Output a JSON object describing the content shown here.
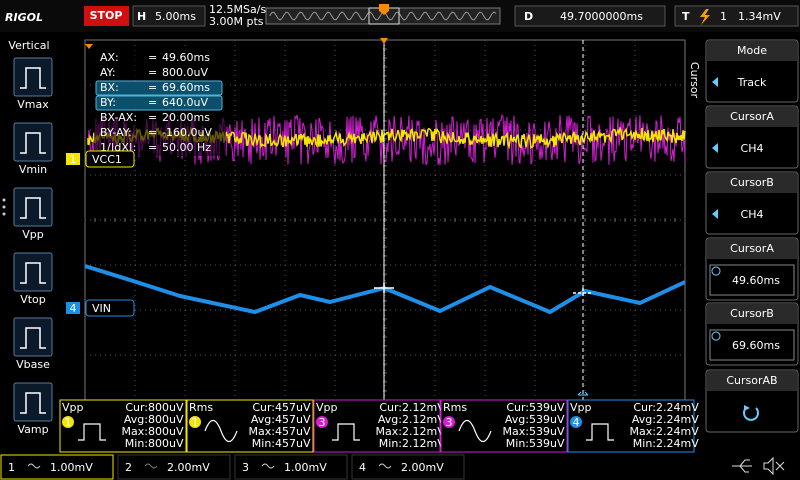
{
  "top_bar": {
    "brand": "RIGOL",
    "status": "STOP",
    "horizontal_label": "H",
    "timebase": "5.00ms",
    "sample_rate": "12.5MSa/s",
    "memory_depth": "3.00M pts",
    "delay_label": "D",
    "delay": "49.7000000ms",
    "trigger_label": "T",
    "trigger_level": "1.34mV"
  },
  "left_menu": {
    "title": "Vertical",
    "items": [
      "Vmax",
      "Vmin",
      "Vpp",
      "Vtop",
      "Vbase",
      "Vamp"
    ]
  },
  "right_menu": {
    "title": "Cursor",
    "items": [
      {
        "label": "Mode",
        "value": "Track"
      },
      {
        "label": "CursorA",
        "value": "CH4"
      },
      {
        "label": "CursorB",
        "value": "CH4"
      },
      {
        "label": "CursorA",
        "value": "49.60ms"
      },
      {
        "label": "CursorB",
        "value": "69.60ms"
      },
      {
        "label": "CursorAB"
      }
    ]
  },
  "cursor_readout": {
    "separator": "=",
    "rows": [
      {
        "label": "AX:",
        "value": "49.60ms"
      },
      {
        "label": "AY:",
        "value": "800.0uV"
      },
      {
        "label": "BX:",
        "value": "69.60ms"
      },
      {
        "label": "BY:",
        "value": "640.0uV"
      },
      {
        "label": "BX-AX:",
        "value": "20.00ms"
      },
      {
        "label": "BY-AY:",
        "value": "-160.0uV"
      },
      {
        "label": "1/|dX|:",
        "value": "50.00 Hz"
      }
    ]
  },
  "channel_labels": [
    {
      "number": "1",
      "name": "VCC1"
    },
    {
      "number": "4",
      "name": "VIN"
    }
  ],
  "measurements": [
    {
      "name": "Vpp",
      "channel": "1",
      "rows": [
        {
          "label": "Cur:",
          "value": "800uV"
        },
        {
          "label": "Avg:",
          "value": "800uV"
        },
        {
          "label": "Max:",
          "value": "800uV"
        },
        {
          "label": "Min:",
          "value": "800uV"
        }
      ]
    },
    {
      "name": "Rms",
      "channel": "1",
      "rows": [
        {
          "label": "Cur:",
          "value": "457uV"
        },
        {
          "label": "Avg:",
          "value": "457uV"
        },
        {
          "label": "Max:",
          "value": "457uV"
        },
        {
          "label": "Min:",
          "value": "457uV"
        }
      ]
    },
    {
      "name": "Vpp",
      "channel": "3",
      "rows": [
        {
          "label": "Cur:",
          "value": "2.12mV"
        },
        {
          "label": "Avg:",
          "value": "2.12mV"
        },
        {
          "label": "Max:",
          "value": "2.12mV"
        },
        {
          "label": "Min:",
          "value": "2.12mV"
        }
      ]
    },
    {
      "name": "Rms",
      "channel": "3",
      "rows": [
        {
          "label": "Cur:",
          "value": "539uV"
        },
        {
          "label": "Avg:",
          "value": "539uV"
        },
        {
          "label": "Max:",
          "value": "539uV"
        },
        {
          "label": "Min:",
          "value": "539uV"
        }
      ]
    },
    {
      "name": "Vpp",
      "channel": "4",
      "rows": [
        {
          "label": "Cur:",
          "value": "2.24mV"
        },
        {
          "label": "Avg:",
          "value": "2.24mV"
        },
        {
          "label": "Max:",
          "value": "2.24mV"
        },
        {
          "label": "Min:",
          "value": "2.24mV"
        }
      ]
    }
  ],
  "channels": [
    {
      "number": "1",
      "scale": "1.00mV"
    },
    {
      "number": "2",
      "scale": "2.00mV"
    },
    {
      "number": "3",
      "scale": "1.00mV"
    },
    {
      "number": "4",
      "scale": "2.00mV"
    }
  ]
}
